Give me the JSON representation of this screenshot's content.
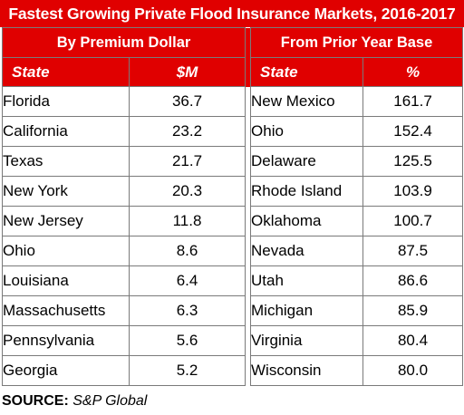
{
  "title": "Fastest Growing Private Flood Insurance Markets, 2016-2017",
  "left_group": "By Premium Dollar",
  "right_group": "From Prior Year Base",
  "left_headers": [
    "State",
    "$M"
  ],
  "right_headers": [
    "State",
    "%"
  ],
  "left_rows": [
    {
      "state": "Florida",
      "value": "36.7"
    },
    {
      "state": "California",
      "value": "23.2"
    },
    {
      "state": "Texas",
      "value": "21.7"
    },
    {
      "state": "New York",
      "value": "20.3"
    },
    {
      "state": "New Jersey",
      "value": "11.8"
    },
    {
      "state": "Ohio",
      "value": "8.6"
    },
    {
      "state": "Louisiana",
      "value": "6.4"
    },
    {
      "state": "Massachusetts",
      "value": "6.3"
    },
    {
      "state": "Pennsylvania",
      "value": "5.6"
    },
    {
      "state": "Georgia",
      "value": "5.2"
    }
  ],
  "right_rows": [
    {
      "state": "New Mexico",
      "value": "161.7"
    },
    {
      "state": "Ohio",
      "value": "152.4"
    },
    {
      "state": "Delaware",
      "value": "125.5"
    },
    {
      "state": "Rhode Island",
      "value": "103.9"
    },
    {
      "state": "Oklahoma",
      "value": "100.7"
    },
    {
      "state": "Nevada",
      "value": "87.5"
    },
    {
      "state": "Utah",
      "value": "86.6"
    },
    {
      "state": "Michigan",
      "value": "85.9"
    },
    {
      "state": "Virginia",
      "value": "80.4"
    },
    {
      "state": "Wisconsin",
      "value": "80.0"
    }
  ],
  "source_label": "SOURCE:",
  "source_value": "S&P Global",
  "colors": {
    "header_red": "#e00000",
    "header_text": "#ffffff",
    "border": "#7a7a7a"
  }
}
